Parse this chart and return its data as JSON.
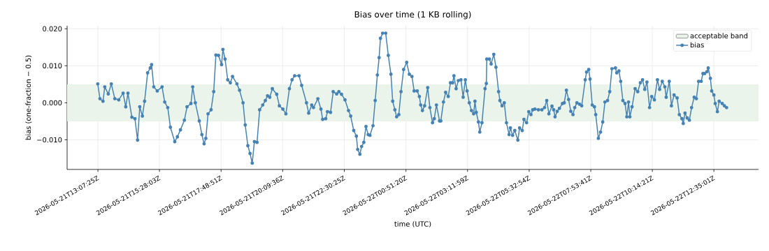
{
  "chart_data": {
    "type": "line",
    "title": "Bias over time (1 KB rolling)",
    "xlabel": "time (UTC)",
    "ylabel": "bias (one-fraction − 0.5)",
    "xlim": [
      "2026-05-21T11:57",
      "2026-05-22T14:17"
    ],
    "ylim": [
      -0.018,
      0.0208
    ],
    "xticks": [
      {
        "value": "2026-05-21T13:07:25",
        "label": "2026-05-21T13:07:25Z"
      },
      {
        "value": "2026-05-21T15:28:03",
        "label": "2026-05-21T15:28:03Z"
      },
      {
        "value": "2026-05-21T17:48:51",
        "label": "2026-05-21T17:48:51Z"
      },
      {
        "value": "2026-05-21T20:09:36",
        "label": "2026-05-21T20:09:36Z"
      },
      {
        "value": "2026-05-21T22:30:25",
        "label": "2026-05-21T22:30:25Z"
      },
      {
        "value": "2026-05-22T00:51:20",
        "label": "2026-05-22T00:51:20Z"
      },
      {
        "value": "2026-05-22T03:11:59",
        "label": "2026-05-22T03:11:59Z"
      },
      {
        "value": "2026-05-22T05:32:54",
        "label": "2026-05-22T05:32:54Z"
      },
      {
        "value": "2026-05-22T07:53:41",
        "label": "2026-05-22T07:53:41Z"
      },
      {
        "value": "2026-05-22T10:14:21",
        "label": "2026-05-22T10:14:21Z"
      },
      {
        "value": "2026-05-22T12:35:01",
        "label": "2026-05-22T12:35:01Z"
      }
    ],
    "yticks": [
      {
        "value": -0.01,
        "label": "−0.010"
      },
      {
        "value": 0,
        "label": "0.000"
      },
      {
        "value": 0.01,
        "label": "0.010"
      },
      {
        "value": 0.02,
        "label": "0.020"
      }
    ],
    "grid": true,
    "legend": "top right",
    "marker": "circle",
    "line_style": "solid",
    "bands": [
      {
        "axis": "y",
        "from": -0.005,
        "to": 0.005,
        "label": "acceptable band",
        "color": "#eaf4ea"
      }
    ],
    "series": [
      {
        "name": "bias",
        "color": "#4682b4",
        "x": [
          "2026-05-21T13:07",
          "2026-05-21T13:12",
          "2026-05-21T13:19",
          "2026-05-21T13:23",
          "2026-05-21T13:31",
          "2026-05-21T13:38",
          "2026-05-21T13:46",
          "2026-05-21T13:55",
          "2026-05-21T14:05",
          "2026-05-21T14:11",
          "2026-05-21T14:16",
          "2026-05-21T14:25",
          "2026-05-21T14:32",
          "2026-05-21T14:38",
          "2026-05-21T14:43",
          "2026-05-21T14:49",
          "2026-05-21T14:54",
          "2026-05-21T15:01",
          "2026-05-21T15:07",
          "2026-05-21T15:10",
          "2026-05-21T15:15",
          "2026-05-21T15:23",
          "2026-05-21T15:34",
          "2026-05-21T15:40",
          "2026-05-21T15:47",
          "2026-05-21T15:53",
          "2026-05-21T16:03",
          "2026-05-21T16:09",
          "2026-05-21T16:16",
          "2026-05-21T16:25",
          "2026-05-21T16:31",
          "2026-05-21T16:40",
          "2026-05-21T16:44",
          "2026-05-21T16:50",
          "2026-05-21T16:59",
          "2026-05-21T17:05",
          "2026-05-21T17:10",
          "2026-05-21T17:14",
          "2026-05-21T17:19",
          "2026-05-21T17:26",
          "2026-05-21T17:32",
          "2026-05-21T17:37",
          "2026-05-21T17:43",
          "2026-05-21T17:50",
          "2026-05-21T17:53",
          "2026-05-21T17:58",
          "2026-05-21T18:04",
          "2026-05-21T18:10",
          "2026-05-21T18:15",
          "2026-05-21T18:25",
          "2026-05-21T18:31",
          "2026-05-21T18:39",
          "2026-05-21T18:44",
          "2026-05-21T18:50",
          "2026-05-21T18:55",
          "2026-05-21T19:00",
          "2026-05-21T19:05",
          "2026-05-21T19:11",
          "2026-05-21T19:17",
          "2026-05-21T19:24",
          "2026-05-21T19:30",
          "2026-05-21T19:35",
          "2026-05-21T19:40",
          "2026-05-21T19:46",
          "2026-05-21T19:56",
          "2026-05-21T20:02",
          "2026-05-21T20:10",
          "2026-05-21T20:17",
          "2026-05-21T20:25",
          "2026-05-21T20:31",
          "2026-05-21T20:37",
          "2026-05-21T20:47",
          "2026-05-21T20:53",
          "2026-05-21T21:04",
          "2026-05-21T21:09",
          "2026-05-21T21:16",
          "2026-05-21T21:20",
          "2026-05-21T21:30",
          "2026-05-21T21:37",
          "2026-05-21T21:41",
          "2026-05-21T21:48",
          "2026-05-21T21:52",
          "2026-05-21T21:59",
          "2026-05-21T22:05",
          "2026-05-21T22:13",
          "2026-05-21T22:18",
          "2026-05-21T22:24",
          "2026-05-21T22:32",
          "2026-05-21T22:40",
          "2026-05-21T22:45",
          "2026-05-21T22:52",
          "2026-05-21T22:58",
          "2026-05-21T23:01",
          "2026-05-21T23:06",
          "2026-05-21T23:10",
          "2026-05-21T23:15",
          "2026-05-21T23:20",
          "2026-05-21T23:25",
          "2026-05-21T23:29",
          "2026-05-21T23:36",
          "2026-05-21T23:41",
          "2026-05-21T23:46",
          "2026-05-21T23:50",
          "2026-05-21T23:53",
          "2026-05-21T23:58",
          "2026-05-22T00:05",
          "2026-05-22T00:11",
          "2026-05-22T00:17",
          "2026-05-22T00:21",
          "2026-05-22T00:26",
          "2026-05-22T00:30",
          "2026-05-22T00:35",
          "2026-05-22T00:40",
          "2026-05-22T00:46",
          "2026-05-22T00:53",
          "2026-05-22T00:59",
          "2026-05-22T01:05",
          "2026-05-22T01:10",
          "2026-05-22T01:17",
          "2026-05-22T01:22",
          "2026-05-22T01:25",
          "2026-05-22T01:29",
          "2026-05-22T01:34",
          "2026-05-22T01:41",
          "2026-05-22T01:46",
          "2026-05-22T01:52",
          "2026-05-22T01:56",
          "2026-05-22T02:01",
          "2026-05-22T02:08",
          "2026-05-22T02:11",
          "2026-05-22T02:17",
          "2026-05-22T02:22",
          "2026-05-22T02:28",
          "2026-05-22T02:33",
          "2026-05-22T02:38",
          "2026-05-22T02:41",
          "2026-05-22T02:46",
          "2026-05-22T02:51",
          "2026-05-22T02:57",
          "2026-05-22T03:02",
          "2026-05-22T03:07",
          "2026-05-22T03:11",
          "2026-05-22T03:16",
          "2026-05-22T03:21",
          "2026-05-22T03:26",
          "2026-05-22T03:29",
          "2026-05-22T03:32",
          "2026-05-22T03:37",
          "2026-05-22T03:40",
          "2026-05-22T03:45",
          "2026-05-22T03:52",
          "2026-05-22T03:55",
          "2026-05-22T03:56",
          "2026-05-22T04:02",
          "2026-05-22T04:06",
          "2026-05-22T04:12",
          "2026-05-22T04:17",
          "2026-05-22T04:23",
          "2026-05-22T04:26",
          "2026-05-22T04:31",
          "2026-05-22T04:36",
          "2026-05-22T04:41",
          "2026-05-22T04:47",
          "2026-05-22T04:50",
          "2026-05-22T04:55",
          "2026-05-22T05:00",
          "2026-05-22T05:07",
          "2026-05-22T05:11",
          "2026-05-22T05:17",
          "2026-05-22T05:21",
          "2026-05-22T05:27",
          "2026-05-22T05:32",
          "2026-05-22T05:37",
          "2026-05-22T05:41",
          "2026-05-22T05:46",
          "2026-05-22T05:54",
          "2026-05-22T06:02",
          "2026-05-22T06:08",
          "2026-05-22T06:13",
          "2026-05-22T06:18",
          "2026-05-22T06:25",
          "2026-05-22T06:29",
          "2026-05-22T06:32",
          "2026-05-22T06:37",
          "2026-05-22T06:42",
          "2026-05-22T06:49",
          "2026-05-22T06:53",
          "2026-05-22T06:58",
          "2026-05-22T07:03",
          "2026-05-22T07:08",
          "2026-05-22T07:13",
          "2026-05-22T07:17",
          "2026-05-22T07:22",
          "2026-05-22T07:28",
          "2026-05-22T07:33",
          "2026-05-22T07:41",
          "2026-05-22T07:44",
          "2026-05-22T07:49",
          "2026-05-22T07:52",
          "2026-05-22T07:57",
          "2026-05-22T08:02",
          "2026-05-22T08:05",
          "2026-05-22T08:11",
          "2026-05-22T08:16",
          "2026-05-22T08:21",
          "2026-05-22T08:26",
          "2026-05-22T08:32",
          "2026-05-22T08:37",
          "2026-05-22T08:42",
          "2026-05-22T08:50",
          "2026-05-22T08:53",
          "2026-05-22T08:58",
          "2026-05-22T09:02",
          "2026-05-22T09:07",
          "2026-05-22T09:12",
          "2026-05-22T09:16",
          "2026-05-22T09:20",
          "2026-05-22T09:23",
          "2026-05-22T09:28",
          "2026-05-22T09:35",
          "2026-05-22T09:41",
          "2026-05-22T09:47",
          "2026-05-22T09:52",
          "2026-05-22T09:57",
          "2026-05-22T10:02",
          "2026-05-22T10:08",
          "2026-05-22T10:13",
          "2026-05-22T10:19",
          "2026-05-22T10:26",
          "2026-05-22T10:31",
          "2026-05-22T10:37",
          "2026-05-22T10:43",
          "2026-05-22T10:46",
          "2026-05-22T10:53",
          "2026-05-22T10:58",
          "2026-05-22T11:04",
          "2026-05-22T11:11",
          "2026-05-22T11:16",
          "2026-05-22T11:22",
          "2026-05-22T11:25",
          "2026-05-22T11:29",
          "2026-05-22T11:34",
          "2026-05-22T11:39",
          "2026-05-22T11:44",
          "2026-05-22T11:50",
          "2026-05-22T11:55",
          "2026-05-22T12:00",
          "2026-05-22T12:06",
          "2026-05-22T12:10",
          "2026-05-22T12:14",
          "2026-05-22T12:19",
          "2026-05-22T12:22",
          "2026-05-22T12:27",
          "2026-05-22T12:30",
          "2026-05-22T12:35",
          "2026-05-22T12:38",
          "2026-05-22T12:43",
          "2026-05-22T12:47",
          "2026-05-22T12:54",
          "2026-05-22T12:59",
          "2026-05-22T13:04"
        ],
        "values": [
          0.0051,
          0.0011,
          0.0004,
          0.0043,
          0.0024,
          0.0051,
          0.0011,
          0.0008,
          0.0026,
          -0.0011,
          0.0026,
          -0.0039,
          -0.0043,
          -0.0101,
          -0.0011,
          -0.0036,
          0.0004,
          0.0081,
          0.0094,
          0.0103,
          0.0043,
          0.0032,
          0.0043,
          0.0002,
          -0.0013,
          -0.0066,
          -0.0105,
          -0.0092,
          -0.0073,
          -0.0047,
          -0.0011,
          -0.0002,
          0.0043,
          0.0,
          -0.0049,
          -0.0086,
          -0.0111,
          -0.0096,
          -0.003,
          -0.0019,
          0.003,
          0.0129,
          0.0128,
          0.0103,
          0.0144,
          0.0118,
          0.0062,
          0.0054,
          0.0071,
          0.0051,
          0.0034,
          0.0,
          -0.006,
          -0.0116,
          -0.0137,
          -0.0163,
          -0.0105,
          -0.0107,
          -0.0019,
          -0.0006,
          0.0006,
          0.0019,
          0.0015,
          0.0038,
          0.0023,
          -0.0008,
          -0.0017,
          -0.003,
          0.0038,
          0.0062,
          0.0073,
          0.0073,
          0.0047,
          0.0,
          -0.0028,
          -0.0006,
          -0.0013,
          0.0011,
          -0.0017,
          -0.0045,
          -0.0043,
          -0.0024,
          -0.0026,
          0.003,
          0.0024,
          0.003,
          0.0023,
          0.0008,
          -0.0021,
          -0.0036,
          -0.0075,
          -0.009,
          -0.0126,
          -0.0139,
          -0.0118,
          -0.0107,
          -0.0064,
          -0.0086,
          -0.0088,
          -0.0062,
          0.0006,
          0.0075,
          0.0122,
          0.0174,
          0.0188,
          0.0188,
          0.0128,
          0.0077,
          0.0004,
          -0.0019,
          -0.0038,
          -0.0032,
          0.003,
          0.009,
          0.0109,
          0.0077,
          0.0071,
          0.0032,
          0.0032,
          0.0017,
          -0.0006,
          -0.0021,
          -0.0008,
          0.0041,
          -0.0013,
          -0.0054,
          -0.0043,
          -0.0006,
          -0.0049,
          -0.0049,
          0.0002,
          0.0028,
          0.0017,
          0.0054,
          0.0054,
          0.0073,
          0.0038,
          0.006,
          0.0062,
          0.0015,
          0.0062,
          0.0032,
          0.0,
          -0.0021,
          -0.003,
          0.0004,
          -0.0026,
          -0.0052,
          -0.0079,
          -0.0054,
          0.0038,
          0.0052,
          0.0118,
          0.0118,
          0.0105,
          0.0131,
          0.0096,
          0.003,
          0.0006,
          -0.0008,
          0.0,
          -0.0054,
          -0.0086,
          -0.0068,
          -0.0088,
          -0.0075,
          -0.0101,
          -0.0068,
          -0.0075,
          -0.0045,
          -0.0054,
          -0.0024,
          -0.0032,
          -0.0019,
          -0.0017,
          -0.0019,
          -0.0019,
          -0.0013,
          0.0006,
          -0.003,
          -0.0009,
          -0.0019,
          -0.0038,
          -0.0023,
          -0.0015,
          -0.0002,
          0.0,
          0.0034,
          0.0009,
          -0.0023,
          -0.0032,
          -0.0013,
          0.0,
          -0.0004,
          -0.0008,
          0.0062,
          0.0083,
          0.009,
          0.0064,
          -0.0006,
          -0.0011,
          -0.0032,
          -0.0096,
          -0.0079,
          -0.0052,
          0.0002,
          0.0006,
          0.003,
          0.0092,
          0.0094,
          0.0081,
          0.0086,
          0.0058,
          0.0006,
          -0.0002,
          -0.0038,
          0.0002,
          -0.0038,
          -0.0011,
          0.0038,
          0.003,
          0.0054,
          0.0062,
          0.0036,
          0.0056,
          -0.0013,
          0.0017,
          0.0008,
          0.0062,
          0.0036,
          0.0058,
          0.0043,
          0.0015,
          0.0058,
          -0.0008,
          0.0021,
          0.0013,
          -0.0032,
          -0.0043,
          -0.0056,
          -0.0028,
          -0.0041,
          -0.0047,
          -0.0013,
          0.0015,
          0.0011,
          0.0058,
          0.0058,
          0.0079,
          0.0079,
          0.0084,
          0.0094,
          0.0066,
          0.0032,
          0.0021,
          -0.0002,
          -0.0024,
          0.0004,
          -0.0002,
          -0.0008,
          -0.0013
        ]
      }
    ]
  }
}
